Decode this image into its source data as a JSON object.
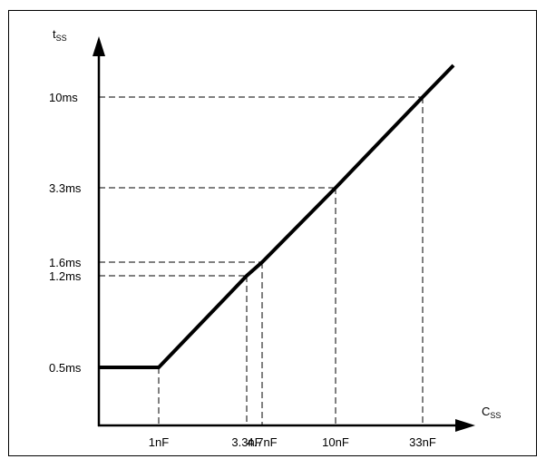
{
  "chart_data": {
    "type": "line",
    "title": "",
    "xlabel": {
      "main": "C",
      "sub": "SS"
    },
    "ylabel": {
      "main": "t",
      "sub": "SS"
    },
    "x_ticks": [
      {
        "label": "1nF",
        "value": 1
      },
      {
        "label": "3.3nF",
        "value": 3.3
      },
      {
        "label": "4.7nF",
        "value": 4.7
      },
      {
        "label": "10nF",
        "value": 10
      },
      {
        "label": "33nF",
        "value": 33
      }
    ],
    "y_ticks": [
      {
        "label": "0.5ms",
        "value": 0.5
      },
      {
        "label": "1.2ms",
        "value": 1.2
      },
      {
        "label": "1.6ms",
        "value": 1.6
      },
      {
        "label": "3.3ms",
        "value": 3.3
      },
      {
        "label": "10ms",
        "value": 10
      }
    ],
    "series": [
      {
        "points": [
          {
            "x": 0,
            "y": 0.5
          },
          {
            "x": 1,
            "y": 0.5
          },
          {
            "x": 3.3,
            "y": 1.2
          },
          {
            "x": 4.7,
            "y": 1.6
          },
          {
            "x": 10,
            "y": 3.3
          },
          {
            "x": 33,
            "y": 10
          },
          {
            "x": 40,
            "y": 12
          }
        ]
      }
    ],
    "guides": [
      {
        "x": 1,
        "y": 0.5
      },
      {
        "x": 3.3,
        "y": 1.2
      },
      {
        "x": 4.7,
        "y": 1.6
      },
      {
        "x": 10,
        "y": 3.3
      },
      {
        "x": 33,
        "y": 10
      }
    ],
    "grid": false,
    "legend": "none",
    "line_color": "#000000",
    "guide_color": "#000000"
  }
}
